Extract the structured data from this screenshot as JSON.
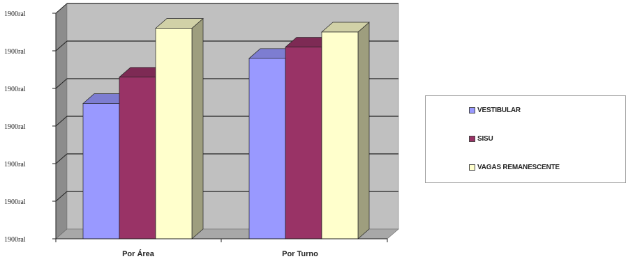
{
  "chart_data": {
    "type": "bar",
    "categories": [
      "Por Área",
      "Por Turno"
    ],
    "series": [
      {
        "name": "VESTIBULAR",
        "values": [
          3.6,
          4.8
        ],
        "color": "#9999ff"
      },
      {
        "name": "SISU",
        "values": [
          4.3,
          5.1
        ],
        "color": "#993366"
      },
      {
        "name": "VAGAS REMANESCENTE",
        "values": [
          5.6,
          5.5
        ],
        "color": "#ffffcc"
      }
    ],
    "y_tick_labels": [
      "1900ral",
      "1900ral",
      "1900ral",
      "1900ral",
      "1900ral",
      "1900ral",
      "1900ral"
    ],
    "ylim": [
      0,
      6
    ],
    "grid": true,
    "legend_position": "right",
    "plot_background": "#c0c0c0",
    "title": "",
    "xlabel": "",
    "ylabel": ""
  }
}
